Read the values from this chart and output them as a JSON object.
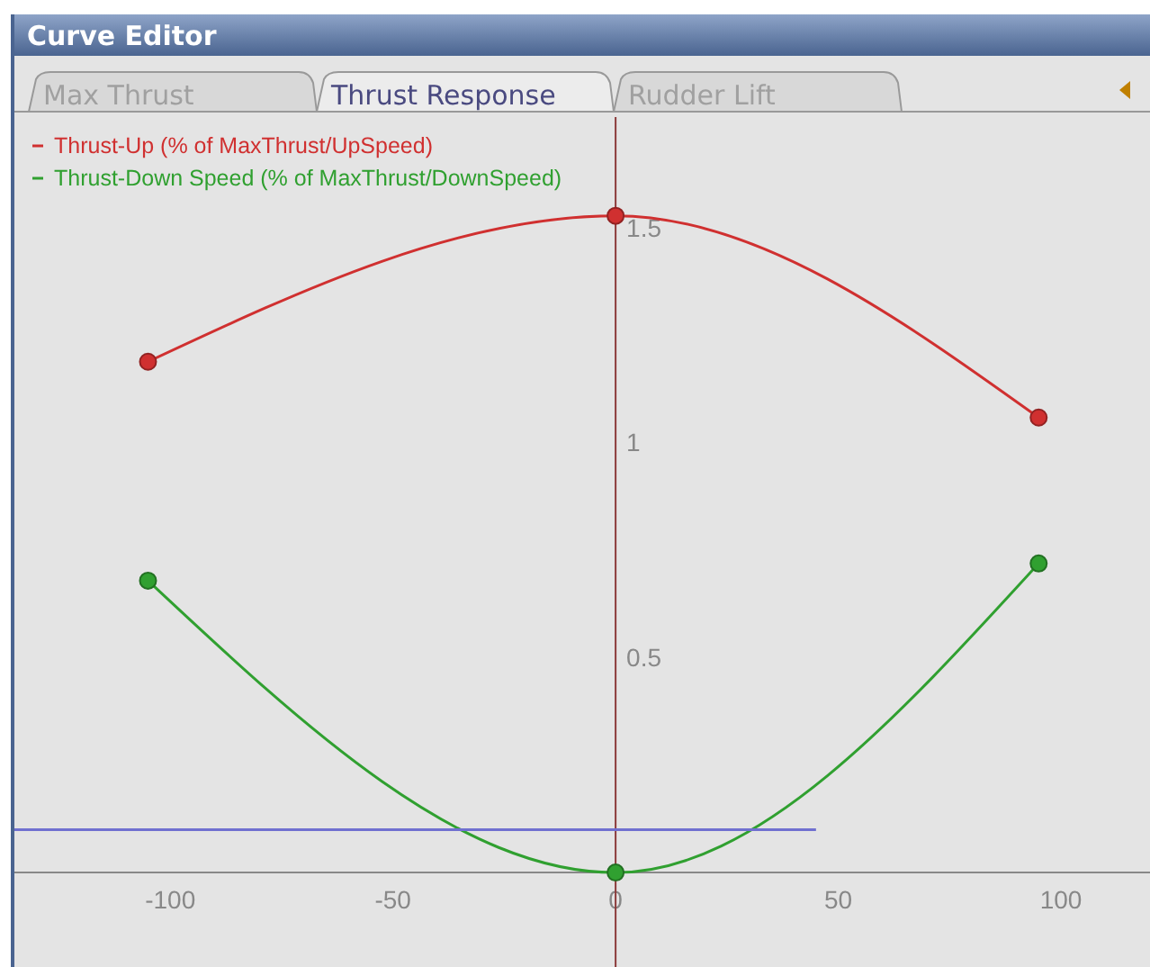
{
  "chart_data": {
    "type": "line",
    "title": "Curve Editor",
    "annotations": [
      "Max Thrust",
      "Thrust Response",
      "Rudder Lift"
    ],
    "xlim": [
      -135,
      120
    ],
    "xticks": [
      -100,
      -50,
      0,
      50,
      100
    ],
    "ylim": [
      -0.22,
      1.76
    ],
    "yticks": [
      0.5,
      1,
      1.5
    ],
    "grid": false,
    "legend": "top left",
    "marker": "circle",
    "line_style": "solid",
    "series": [
      {
        "name": "Thrust-Up (% of MaxThrust/UpSpeed)",
        "color": "#d03030",
        "x": [
          -105,
          0,
          95
        ],
        "values": [
          1.19,
          1.53,
          1.06
        ]
      },
      {
        "name": "Thrust-Down Speed (% of MaxThrust/DownSpeed)",
        "color": "#30a030",
        "x": [
          -105,
          0,
          95
        ],
        "values": [
          0.68,
          0,
          0.72
        ]
      },
      {
        "color": "#7070d0",
        "x": [
          -135,
          45
        ],
        "values": [
          0.1,
          0.1
        ],
        "marker": "none"
      }
    ]
  }
}
